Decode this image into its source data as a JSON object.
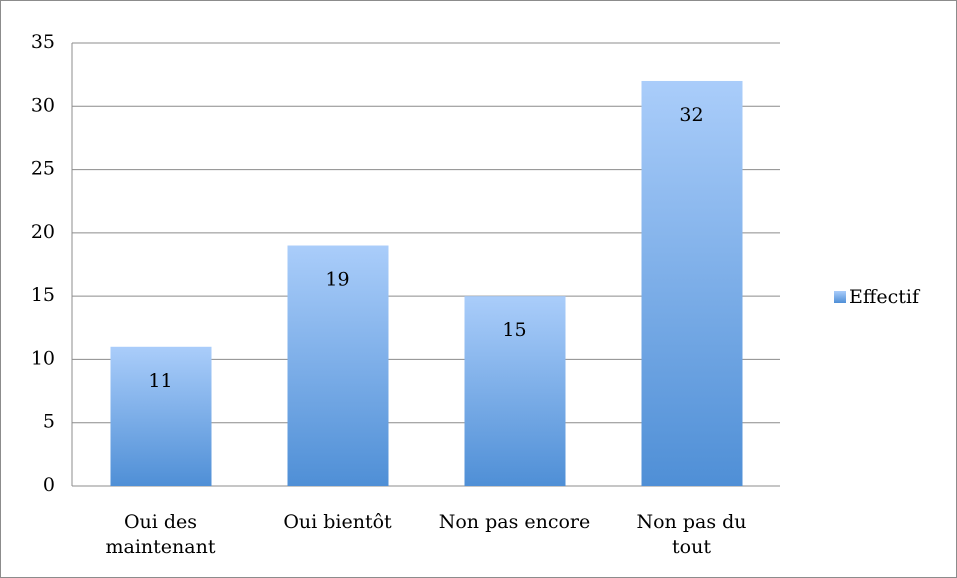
{
  "chart_data": {
    "type": "bar",
    "categories": [
      "Oui des\nmaintenant",
      "Oui bientôt",
      "Non pas encore",
      "Non pas du\ntout"
    ],
    "series": [
      {
        "name": "Effectif",
        "color": "#4f8fd6",
        "values": [
          11,
          19,
          15,
          32
        ]
      }
    ],
    "ylim": [
      0,
      35
    ],
    "yticks": [
      0,
      5,
      10,
      15,
      20,
      25,
      30,
      35
    ],
    "grid": true,
    "legend": "right"
  }
}
